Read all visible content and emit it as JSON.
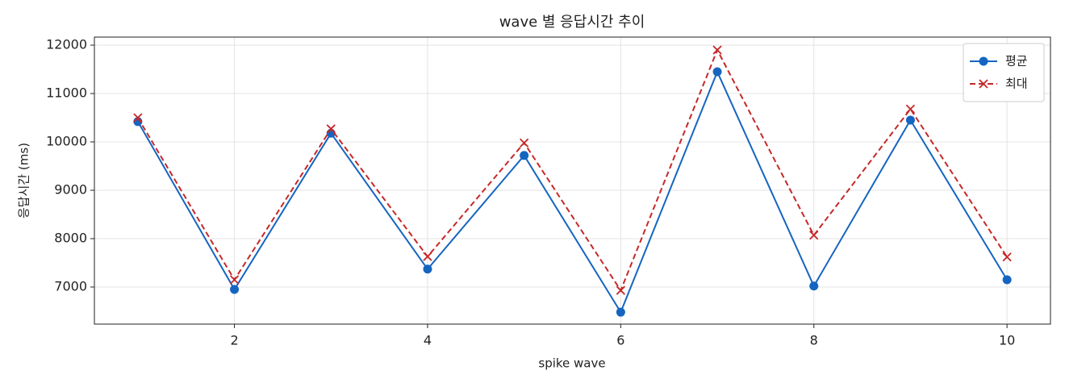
{
  "chart_data": {
    "type": "line",
    "title": "wave 별 응답시간 추이",
    "xlabel": "spike wave",
    "ylabel": "응답시간 (ms)",
    "x": [
      1,
      2,
      3,
      4,
      5,
      6,
      7,
      8,
      9,
      10
    ],
    "series": [
      {
        "name": "평균",
        "color": "#1565c0",
        "marker": "circle",
        "dash": false,
        "values": [
          10420,
          6950,
          10180,
          7370,
          9720,
          6480,
          11450,
          7020,
          10450,
          7150
        ]
      },
      {
        "name": "최대",
        "color": "#c62828",
        "marker": "x",
        "dash": true,
        "values": [
          10500,
          7150,
          10270,
          7630,
          9980,
          6930,
          11900,
          8070,
          10680,
          7620
        ]
      }
    ],
    "xlim": [
      0.55,
      10.45
    ],
    "ylim": [
      6233,
      12167
    ],
    "xticks": [
      2,
      4,
      6,
      8,
      10
    ],
    "yticks": [
      7000,
      8000,
      9000,
      10000,
      11000,
      12000
    ],
    "grid": true,
    "legend": "upper right"
  }
}
